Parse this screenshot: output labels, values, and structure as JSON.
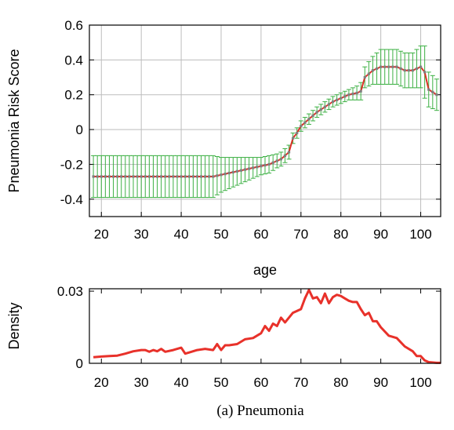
{
  "caption": "(a) Pneumonia",
  "chart_data": [
    {
      "type": "line",
      "xlabel": "age",
      "ylabel": "Pneumonia Risk Score",
      "xlim": [
        17,
        105
      ],
      "ylim": [
        -0.5,
        0.6
      ],
      "xticks": [
        "20",
        "30",
        "40",
        "50",
        "60",
        "70",
        "80",
        "90",
        "100"
      ],
      "yticks": [
        "-0.4",
        "-0.2",
        "0",
        "0.2",
        "0.4",
        "0.6"
      ],
      "grid": true,
      "legend": "none",
      "colors": {
        "line": "#d93025",
        "error_bars": "#3cb043",
        "markers": "#808080"
      },
      "series": [
        {
          "x": [
            18,
            20,
            25,
            30,
            35,
            40,
            45,
            48,
            50,
            52,
            54,
            56,
            58,
            60,
            62,
            64,
            65,
            66,
            67,
            68,
            69,
            70,
            71,
            72,
            74,
            76,
            78,
            80,
            82,
            84,
            85,
            86,
            88,
            90,
            92,
            94,
            96,
            98,
            100,
            101,
            102,
            104
          ],
          "y": [
            -0.27,
            -0.27,
            -0.27,
            -0.27,
            -0.27,
            -0.27,
            -0.27,
            -0.27,
            -0.26,
            -0.25,
            -0.24,
            -0.23,
            -0.22,
            -0.21,
            -0.2,
            -0.18,
            -0.17,
            -0.15,
            -0.13,
            -0.05,
            -0.02,
            0.02,
            0.04,
            0.06,
            0.1,
            0.13,
            0.16,
            0.18,
            0.2,
            0.21,
            0.22,
            0.3,
            0.34,
            0.36,
            0.36,
            0.36,
            0.34,
            0.34,
            0.36,
            0.33,
            0.23,
            0.2
          ],
          "err": [
            0.12,
            0.12,
            0.12,
            0.12,
            0.12,
            0.12,
            0.12,
            0.12,
            0.1,
            0.09,
            0.08,
            0.07,
            0.06,
            0.05,
            0.05,
            0.04,
            0.04,
            0.04,
            0.04,
            0.03,
            0.03,
            0.03,
            0.03,
            0.03,
            0.03,
            0.03,
            0.03,
            0.03,
            0.03,
            0.04,
            0.05,
            0.06,
            0.08,
            0.1,
            0.1,
            0.1,
            0.1,
            0.1,
            0.12,
            0.15,
            0.1,
            0.09
          ]
        }
      ]
    },
    {
      "type": "line",
      "ylabel": "Density",
      "xlim": [
        17,
        105
      ],
      "ylim": [
        0,
        0.031
      ],
      "xticks": [
        "20",
        "30",
        "40",
        "50",
        "60",
        "70",
        "80",
        "90",
        "100"
      ],
      "yticks": [
        "0",
        "0.03"
      ],
      "grid": false,
      "legend": "none",
      "colors": {
        "line": "#e8312a"
      },
      "series": [
        {
          "x": [
            18,
            20,
            22,
            24,
            26,
            28,
            30,
            31,
            32,
            33,
            34,
            35,
            36,
            38,
            40,
            41,
            42,
            44,
            46,
            48,
            49,
            50,
            51,
            52,
            54,
            56,
            58,
            60,
            61,
            62,
            63,
            64,
            65,
            66,
            67,
            68,
            70,
            71,
            72,
            73,
            74,
            75,
            76,
            77,
            78,
            79,
            80,
            81,
            82,
            83,
            84,
            85,
            86,
            87,
            88,
            89,
            90,
            92,
            94,
            96,
            98,
            99,
            100,
            101,
            102,
            104,
            105
          ],
          "y": [
            0.0025,
            0.0028,
            0.003,
            0.0032,
            0.004,
            0.005,
            0.0055,
            0.0055,
            0.0048,
            0.0055,
            0.005,
            0.006,
            0.0048,
            0.0055,
            0.0065,
            0.004,
            0.0045,
            0.0055,
            0.006,
            0.0055,
            0.008,
            0.0055,
            0.0075,
            0.0075,
            0.008,
            0.01,
            0.0105,
            0.0125,
            0.0155,
            0.0135,
            0.0165,
            0.0155,
            0.019,
            0.017,
            0.019,
            0.021,
            0.0225,
            0.027,
            0.0305,
            0.027,
            0.0275,
            0.025,
            0.029,
            0.025,
            0.0275,
            0.0285,
            0.028,
            0.027,
            0.026,
            0.0255,
            0.0255,
            0.0225,
            0.02,
            0.021,
            0.0175,
            0.0175,
            0.015,
            0.0115,
            0.0105,
            0.007,
            0.005,
            0.003,
            0.003,
            0.0012,
            0.0005,
            0.0002,
            0.0002
          ]
        }
      ]
    }
  ]
}
